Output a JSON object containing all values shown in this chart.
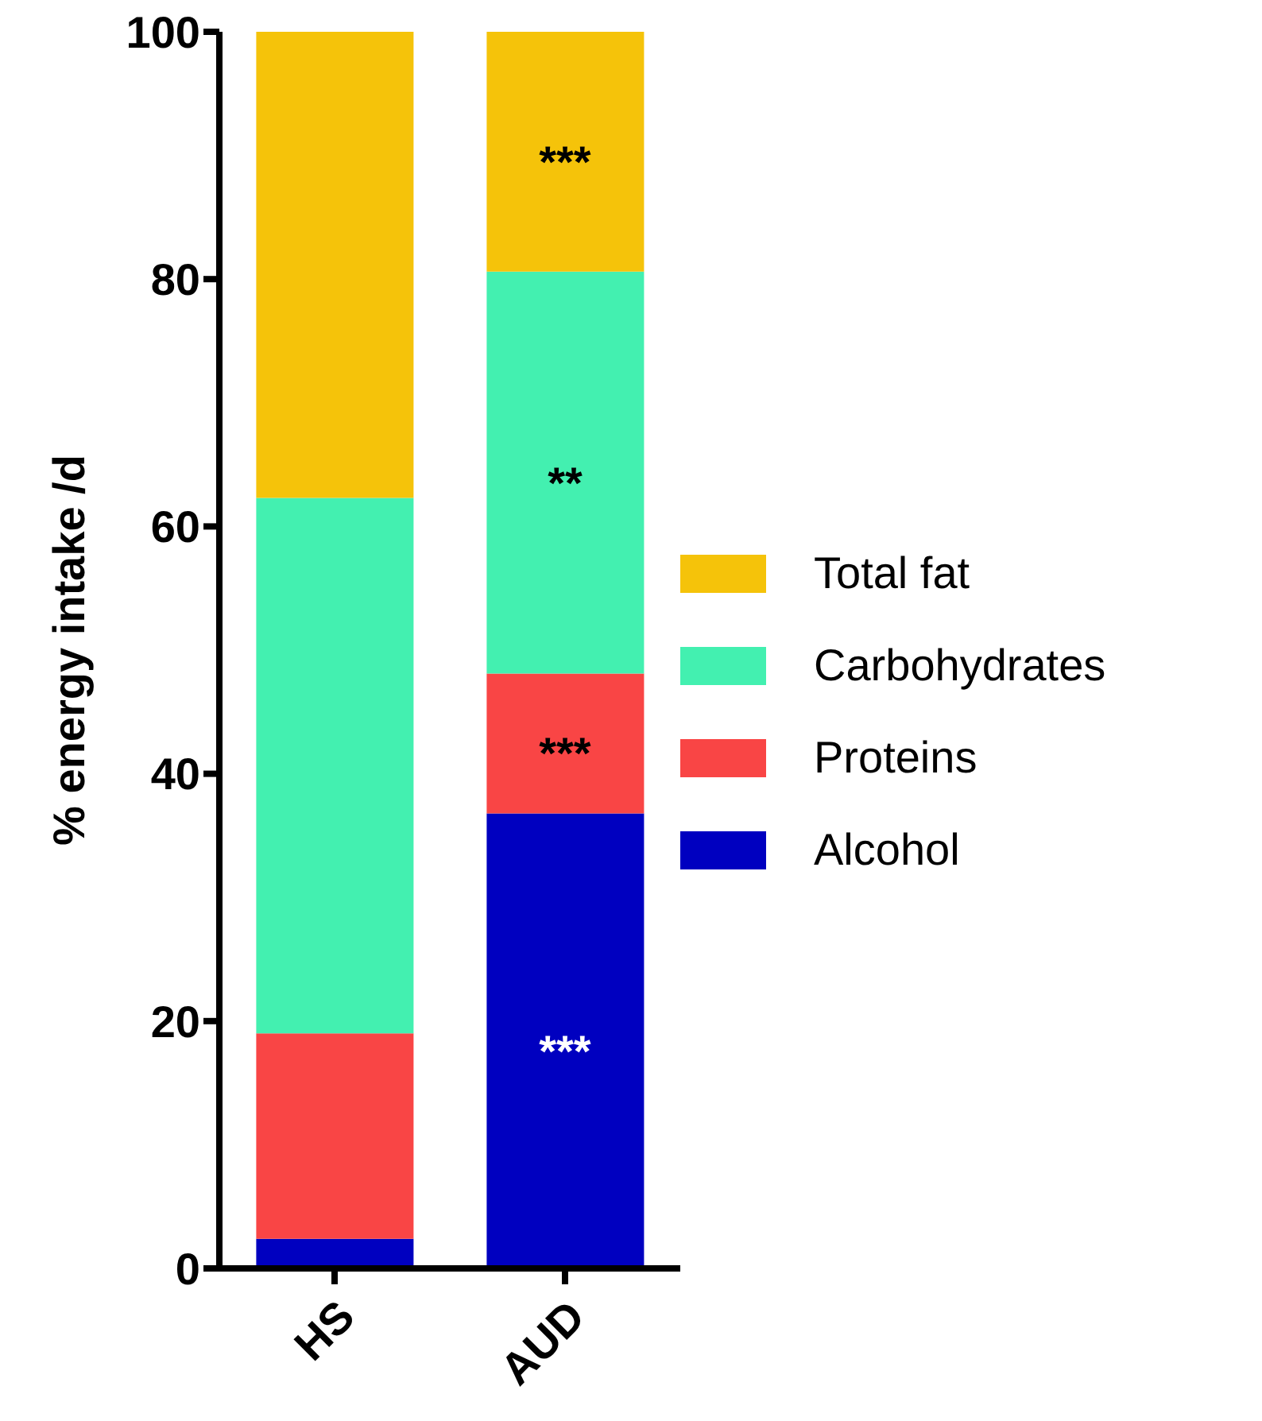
{
  "chart_data": {
    "type": "bar",
    "stacked": true,
    "ylabel": "% energy intake /d",
    "categories": [
      "HS",
      "AUD"
    ],
    "series": [
      {
        "name": "Alcohol",
        "color": "#0000c0",
        "values": [
          2.4,
          36.8
        ]
      },
      {
        "name": "Proteins",
        "color": "#f94545",
        "values": [
          16.6,
          11.3
        ]
      },
      {
        "name": "Carbohydrates",
        "color": "#43f0b0",
        "values": [
          43.3,
          32.5
        ]
      },
      {
        "name": "Total fat",
        "color": "#f5c30a",
        "values": [
          37.7,
          19.4
        ]
      }
    ],
    "ylim": [
      0,
      100
    ],
    "yticks": [
      0,
      20,
      40,
      60,
      80,
      100
    ],
    "grid": false,
    "legend": "right",
    "annotations": [
      "***",
      "**",
      "***",
      "***"
    ]
  }
}
